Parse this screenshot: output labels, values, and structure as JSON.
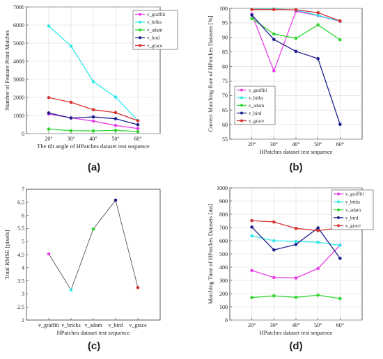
{
  "chart_data": [
    {
      "type": "line",
      "panel_label": "(a)",
      "ylabel": "Number of Feature Point Matches",
      "xlabel": "The tilt angle of HPatches dataset test sequence",
      "categories": [
        "20°",
        "30°",
        "40°",
        "50°",
        "60°"
      ],
      "ylim": [
        0,
        7000
      ],
      "yticks": [
        "0",
        "1000",
        "2000",
        "3000",
        "4000",
        "5000",
        "6000",
        "7000"
      ],
      "grid": true,
      "legend": "top-right",
      "series": [
        {
          "name": "v_graffiti",
          "color": "#e83de8",
          "values": [
            1080,
            870,
            690,
            450,
            280
          ]
        },
        {
          "name": "v_briks",
          "color": "#30e8e8",
          "values": [
            5950,
            4830,
            2870,
            2020,
            720
          ]
        },
        {
          "name": "v_adam",
          "color": "#2ed62e",
          "values": [
            250,
            160,
            150,
            180,
            110
          ]
        },
        {
          "name": "v_bird",
          "color": "#1c1c8c",
          "values": [
            1140,
            860,
            920,
            820,
            490
          ]
        },
        {
          "name": "v_grace",
          "color": "#d62e2e",
          "values": [
            1990,
            1730,
            1320,
            1160,
            710
          ]
        }
      ]
    },
    {
      "type": "line",
      "panel_label": "(b)",
      "ylabel": "Correct Matching Rate of HPatches Datasets [%]",
      "xlabel": "HPatches dataset test sequence",
      "categories": [
        "20°",
        "30°",
        "40°",
        "50°",
        "60°"
      ],
      "ylim": [
        55,
        100
      ],
      "yticks": [
        "55",
        "60",
        "65",
        "70",
        "75",
        "80",
        "85",
        "90",
        "95",
        "100"
      ],
      "grid": true,
      "legend": "bottom-left",
      "series": [
        {
          "name": "v_graffiti",
          "color": "#e83de8",
          "values": [
            98.0,
            78.5,
            99.0,
            97.5,
            95.5
          ]
        },
        {
          "name": "v_briks",
          "color": "#30e8e8",
          "values": [
            99.7,
            99.8,
            99.4,
            97.6,
            95.6
          ]
        },
        {
          "name": "v_adam",
          "color": "#2ed62e",
          "values": [
            96.5,
            91.2,
            89.7,
            94.3,
            89.2
          ]
        },
        {
          "name": "v_bird",
          "color": "#1c1c8c",
          "values": [
            97.7,
            89.3,
            85.2,
            82.7,
            60.1
          ]
        },
        {
          "name": "v_grace",
          "color": "#d62e2e",
          "values": [
            99.6,
            99.6,
            99.5,
            98.5,
            95.7
          ]
        }
      ]
    },
    {
      "type": "line",
      "panel_label": "(c)",
      "ylabel": "Total RMSE [pixels]",
      "xlabel": "HPatches dataset test sequence",
      "categories": [
        "v_graffiti",
        "v_bricks",
        "v_adam",
        "v_bird",
        "v_grace"
      ],
      "ylim": [
        2,
        7
      ],
      "yticks": [
        "2",
        "2.5",
        "3",
        "3.5",
        "4",
        "4.5",
        "5",
        "5.5",
        "6",
        "6.5",
        "7"
      ],
      "grid": false,
      "line_color": "#555555",
      "values": [
        4.53,
        3.15,
        5.48,
        6.58,
        3.24
      ],
      "point_colors": [
        "#e83de8",
        "#30e8e8",
        "#2ed62e",
        "#1c1c8c",
        "#d62e2e"
      ]
    },
    {
      "type": "line",
      "panel_label": "(d)",
      "ylabel": "Matching Time of HPatches Datasets [ms]",
      "xlabel": "HPatches dataset test sequence",
      "categories": [
        "20°",
        "30°",
        "40°",
        "50°",
        "60°"
      ],
      "ylim": [
        0,
        1000
      ],
      "yticks": [
        "0",
        "100",
        "200",
        "300",
        "400",
        "500",
        "600",
        "700",
        "800",
        "900",
        "1000"
      ],
      "grid": true,
      "legend": "top-right",
      "series": [
        {
          "name": "v_graffiti",
          "color": "#e83de8",
          "values": [
            375,
            322,
            318,
            390,
            567
          ]
        },
        {
          "name": "v_briks",
          "color": "#30e8e8",
          "values": [
            637,
            600,
            595,
            588,
            565
          ]
        },
        {
          "name": "v_adam",
          "color": "#2ed62e",
          "values": [
            170,
            183,
            172,
            188,
            163
          ]
        },
        {
          "name": "v_bird",
          "color": "#1c1c8c",
          "values": [
            703,
            530,
            572,
            697,
            467
          ]
        },
        {
          "name": "v_grace",
          "color": "#d62e2e",
          "values": [
            752,
            742,
            693,
            677,
            697
          ]
        }
      ]
    }
  ]
}
